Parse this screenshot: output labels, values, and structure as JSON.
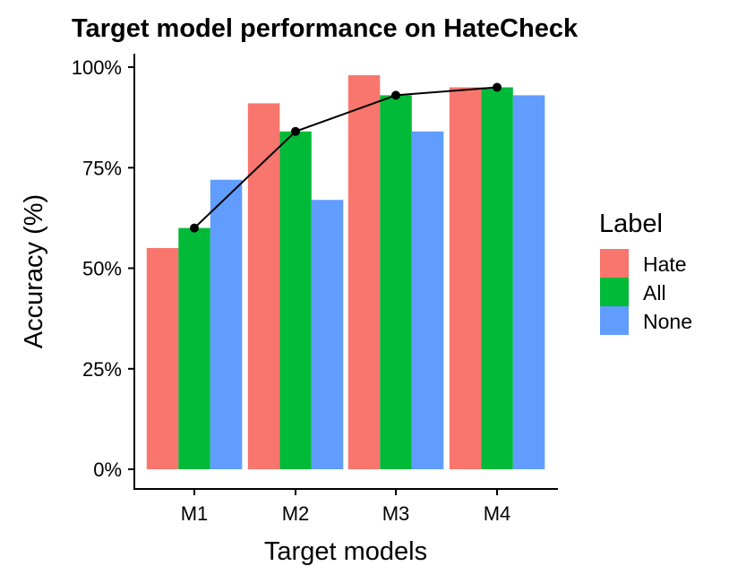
{
  "chart_data": {
    "type": "bar",
    "title": "Target model performance on HateCheck",
    "xlabel": "Target models",
    "ylabel": "Accuracy (%)",
    "categories": [
      "M1",
      "M2",
      "M3",
      "M4"
    ],
    "ylim": [
      0,
      100
    ],
    "yticks": [
      0,
      25,
      50,
      75,
      100
    ],
    "ytick_labels": [
      "0%",
      "25%",
      "50%",
      "75%",
      "100%"
    ],
    "grid": false,
    "legend": {
      "title": "Label",
      "placement": "right"
    },
    "series": [
      {
        "name": "Hate",
        "color": "#F8766D",
        "values": [
          55,
          91,
          98,
          95
        ]
      },
      {
        "name": "All",
        "color": "#00BA38",
        "values": [
          60,
          84,
          93,
          95
        ]
      },
      {
        "name": "None",
        "color": "#619CFF",
        "values": [
          72,
          67,
          84,
          93
        ]
      }
    ],
    "line": {
      "series": "All",
      "color": "#000000",
      "values": [
        60,
        84,
        93,
        95
      ]
    }
  }
}
